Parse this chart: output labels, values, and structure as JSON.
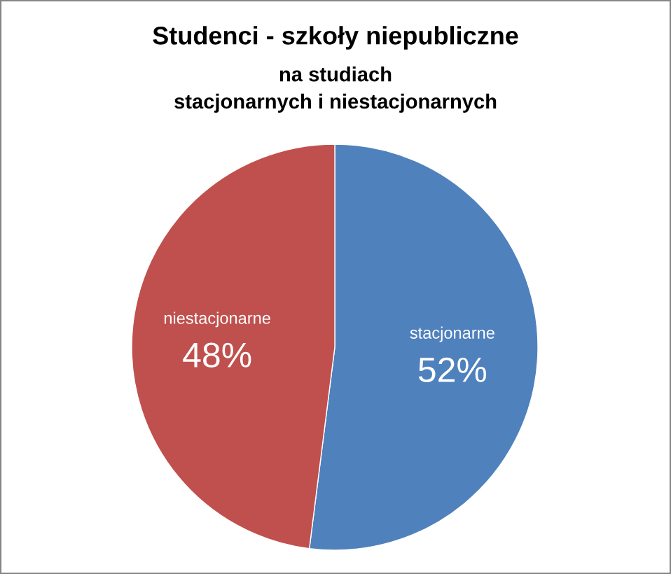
{
  "chart_data": {
    "type": "pie",
    "title": "Studenci - szkoły niepubliczne",
    "subtitle": "na studiach\nstacjonarnych i niestacjonarnych",
    "categories": [
      "stacjonarne",
      "niestacjonarne"
    ],
    "values": [
      52,
      48
    ],
    "colors": [
      "#4f81bd",
      "#c0504d"
    ],
    "value_labels": [
      "52%",
      "48%"
    ]
  }
}
